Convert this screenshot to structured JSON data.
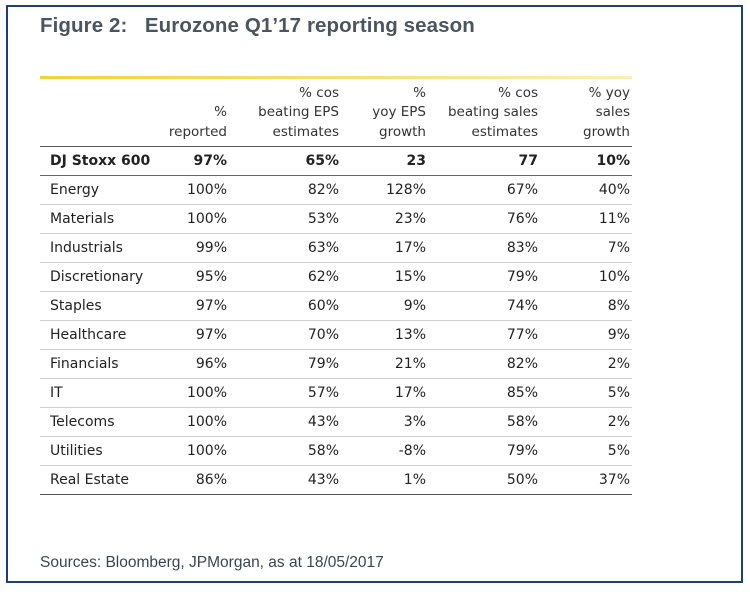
{
  "figure": {
    "title": "Figure 2:   Eurozone Q1’17 reporting season",
    "source": "Sources: Bloomberg, JPMorgan, as at 18/05/2017"
  },
  "table": {
    "headers": [
      "%\nreported",
      "% cos\nbeating EPS\nestimates",
      "%\nyoy EPS\ngrowth",
      "% cos\nbeating sales\nestimates",
      "% yoy\nsales\ngrowth"
    ],
    "rows": [
      {
        "name": "DJ Stoxx 600",
        "values": [
          "97%",
          "65%",
          "23",
          "77",
          "10%"
        ]
      },
      {
        "name": "Energy",
        "values": [
          "100%",
          "82%",
          "128%",
          "67%",
          "40%"
        ]
      },
      {
        "name": "Materials",
        "values": [
          "100%",
          "53%",
          "23%",
          "76%",
          "11%"
        ]
      },
      {
        "name": "Industrials",
        "values": [
          "99%",
          "63%",
          "17%",
          "83%",
          "7%"
        ]
      },
      {
        "name": "Discretionary",
        "values": [
          "95%",
          "62%",
          "15%",
          "79%",
          "10%"
        ]
      },
      {
        "name": "Staples",
        "values": [
          "97%",
          "60%",
          "9%",
          "74%",
          "8%"
        ]
      },
      {
        "name": "Healthcare",
        "values": [
          "97%",
          "70%",
          "13%",
          "77%",
          "9%"
        ]
      },
      {
        "name": "Financials",
        "values": [
          "96%",
          "79%",
          "21%",
          "82%",
          "2%"
        ]
      },
      {
        "name": "IT",
        "values": [
          "100%",
          "57%",
          "17%",
          "85%",
          "5%"
        ]
      },
      {
        "name": "Telecoms",
        "values": [
          "100%",
          "43%",
          "3%",
          "58%",
          "2%"
        ]
      },
      {
        "name": "Utilities",
        "values": [
          "100%",
          "58%",
          "-8%",
          "79%",
          "5%"
        ]
      },
      {
        "name": "Real Estate",
        "values": [
          "86%",
          "43%",
          "1%",
          "50%",
          "37%"
        ]
      }
    ]
  },
  "colors": {
    "frame_border": "#1a4170",
    "accent_rule": "#f3d233",
    "title_text": "#4a5560"
  }
}
